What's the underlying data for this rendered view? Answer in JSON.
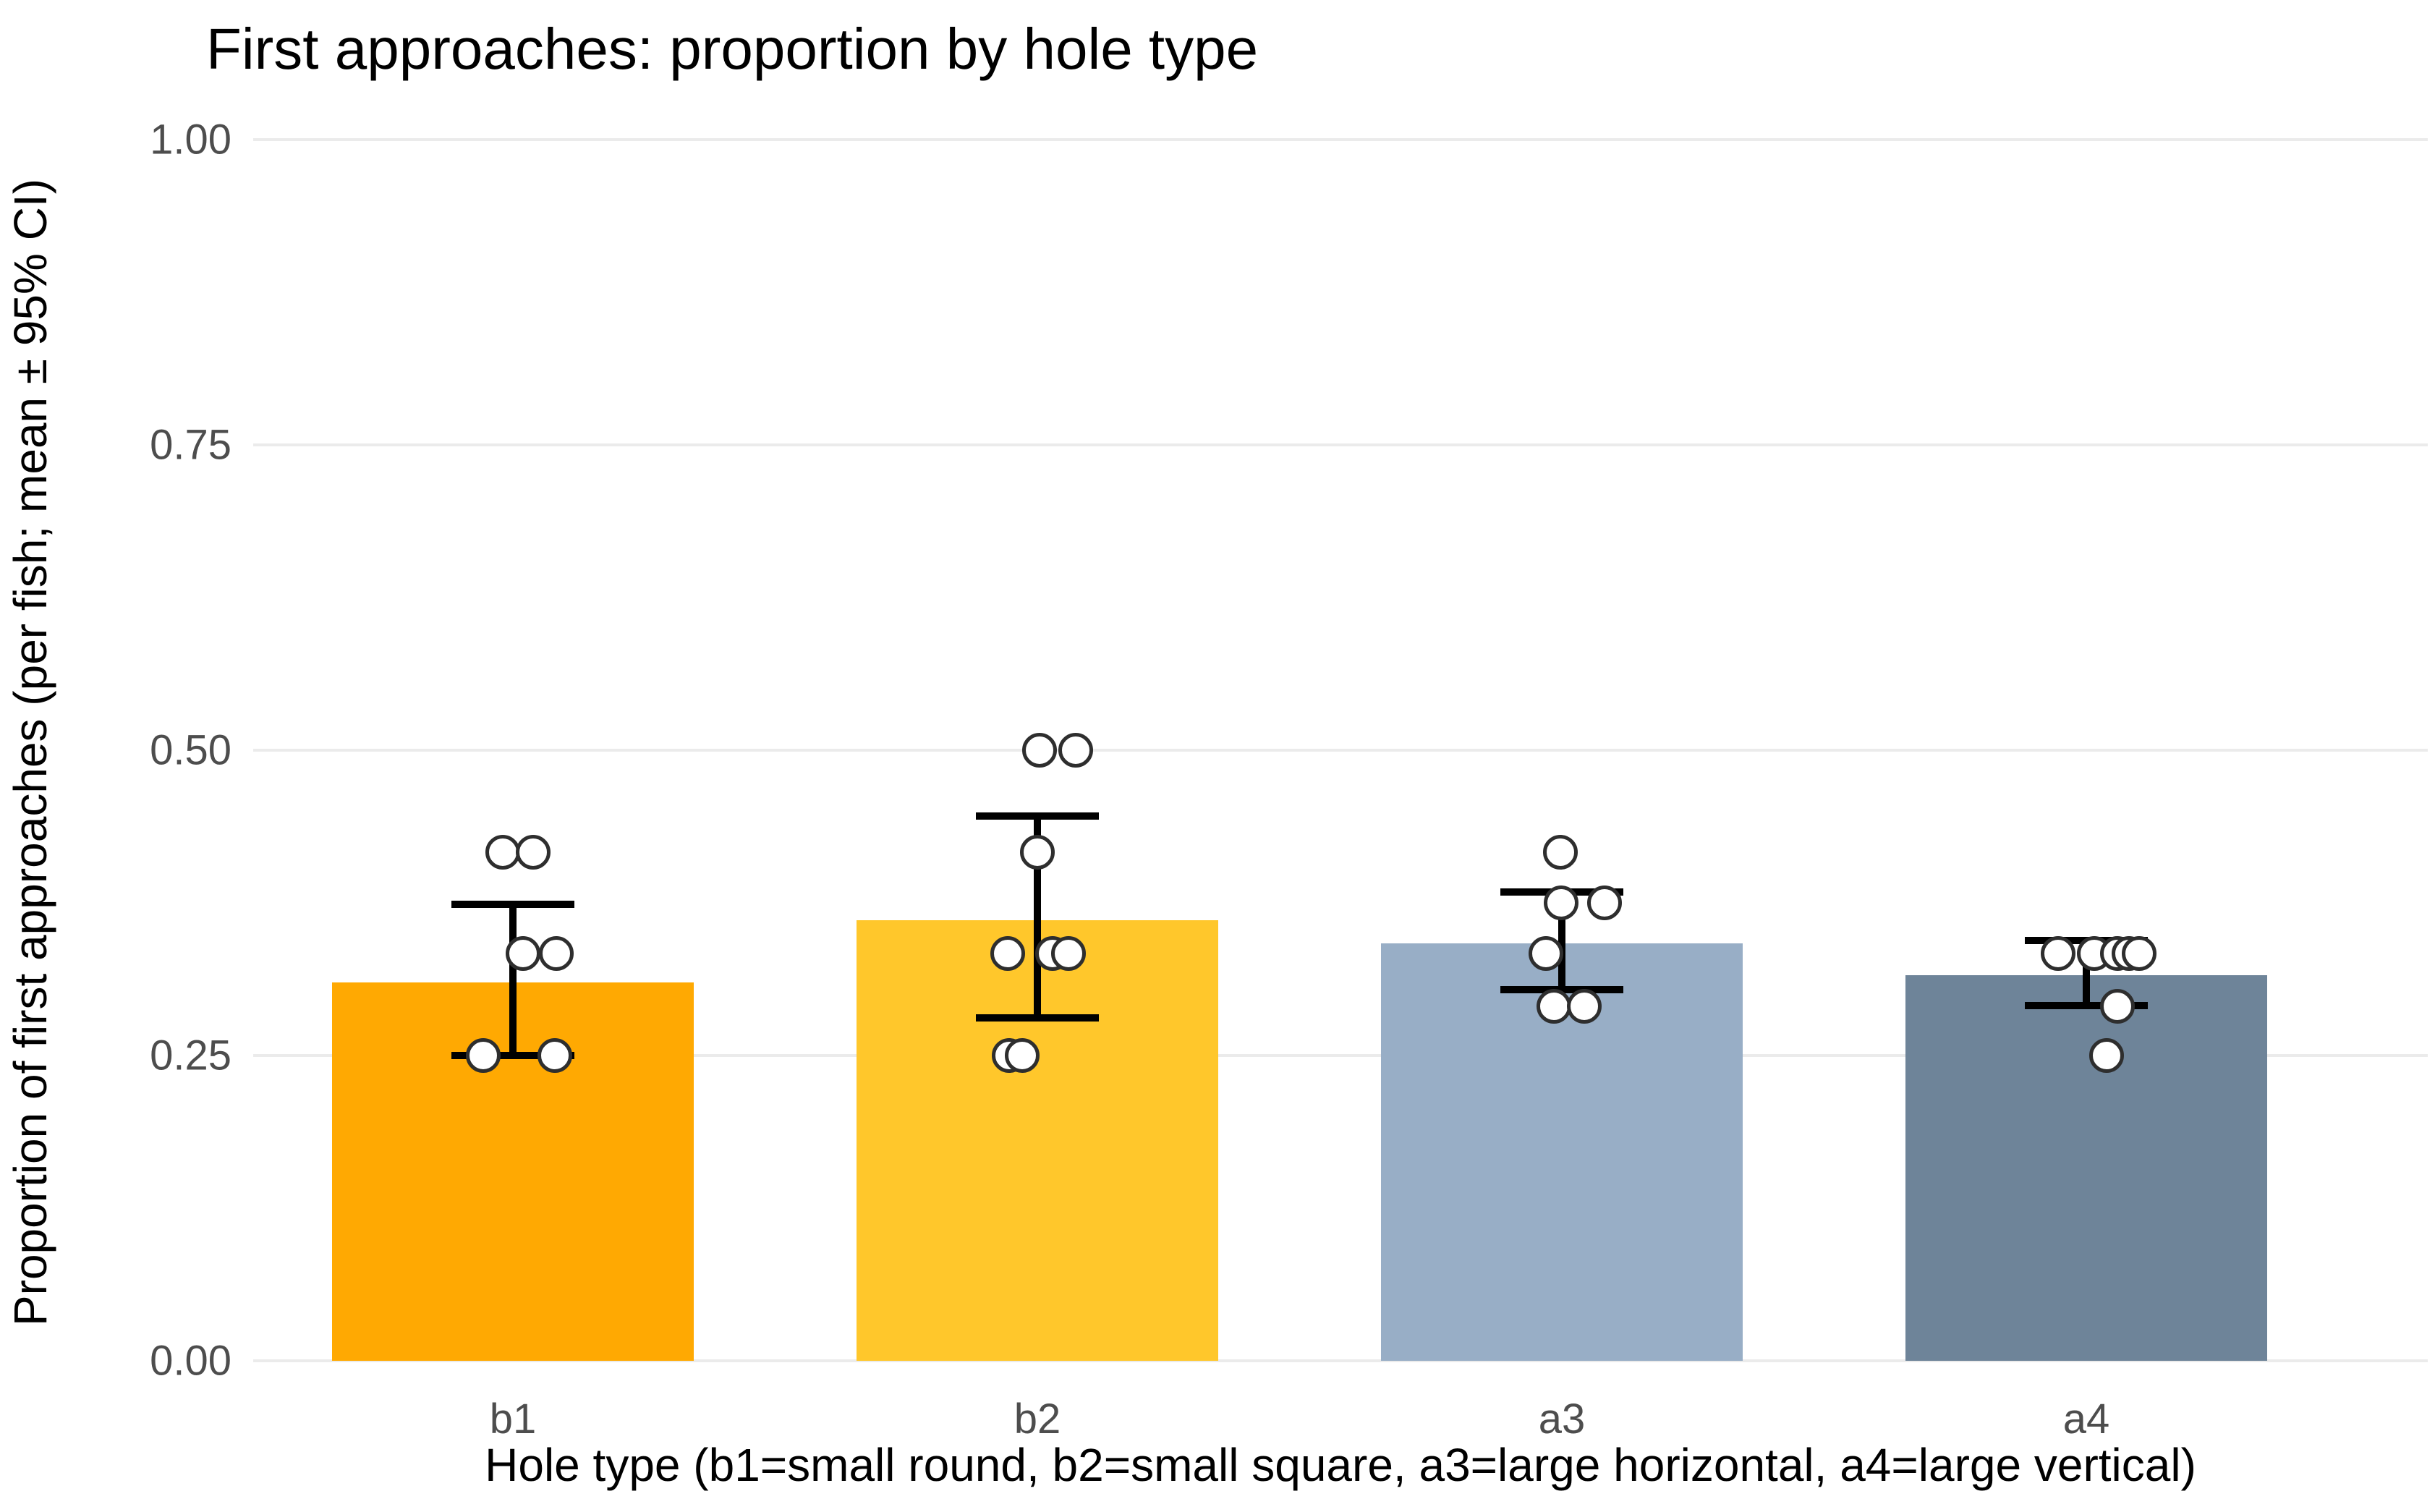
{
  "page": {
    "background": "#ffffff"
  },
  "chart_data": {
    "type": "bar",
    "title": "First approaches: proportion by hole type",
    "xlabel": "Hole type (b1=small round, b2=small square, a3=large horizontal, a4=large vertical)",
    "ylabel": "Proportion of first approaches (per fish; mean ± 95% CI)",
    "ylim": [
      0,
      1
    ],
    "yticks": [
      0,
      0.25,
      0.5,
      0.75,
      1
    ],
    "ytick_labels": [
      "0.00",
      "0.25",
      "0.50",
      "0.75",
      "1.00"
    ],
    "grid": "horizontal-major-only",
    "legend": "none",
    "error_bars": "mean ± 95% CI",
    "categories": [
      "b1",
      "b2",
      "a3",
      "a4"
    ],
    "means": [
      0.31,
      0.361,
      0.342,
      0.316
    ],
    "ci_low": [
      0.25,
      0.281,
      0.304,
      0.291
    ],
    "ci_high": [
      0.374,
      0.446,
      0.384,
      0.344
    ],
    "bar_colors": [
      "#FFA902",
      "#FFC72B",
      "#98AEC6",
      "#6E8499"
    ],
    "grid_color": "#EBEBEB",
    "tick_label_color": "#4D4D4D",
    "text_color": "#000000",
    "point_style": {
      "fill": "#FFFFFF",
      "stroke": "#2E2E2E"
    },
    "points": [
      {
        "category": "b1",
        "values": [
          {
            "v": 0.4167,
            "dx": -14
          },
          {
            "v": 0.4167,
            "dx": 28
          },
          {
            "v": 0.3333,
            "dx": 14
          },
          {
            "v": 0.3333,
            "dx": 60
          },
          {
            "v": 0.25,
            "dx": -41
          },
          {
            "v": 0.25,
            "dx": 58
          }
        ]
      },
      {
        "category": "b2",
        "values": [
          {
            "v": 0.5,
            "dx": 3
          },
          {
            "v": 0.5,
            "dx": 53
          },
          {
            "v": 0.4167,
            "dx": 0
          },
          {
            "v": 0.3333,
            "dx": -41
          },
          {
            "v": 0.3333,
            "dx": 21
          },
          {
            "v": 0.3333,
            "dx": 43
          },
          {
            "v": 0.25,
            "dx": -39
          },
          {
            "v": 0.25,
            "dx": -21
          }
        ]
      },
      {
        "category": "a3",
        "values": [
          {
            "v": 0.4167,
            "dx": -2
          },
          {
            "v": 0.375,
            "dx": -1
          },
          {
            "v": 0.375,
            "dx": 59
          },
          {
            "v": 0.3333,
            "dx": -22
          },
          {
            "v": 0.29,
            "dx": -11
          },
          {
            "v": 0.29,
            "dx": 31
          }
        ]
      },
      {
        "category": "a4",
        "values": [
          {
            "v": 0.3333,
            "dx": -39
          },
          {
            "v": 0.3333,
            "dx": 11
          },
          {
            "v": 0.3333,
            "dx": 43
          },
          {
            "v": 0.3333,
            "dx": 59
          },
          {
            "v": 0.3333,
            "dx": 73
          },
          {
            "v": 0.29,
            "dx": 43
          },
          {
            "v": 0.25,
            "dx": 28
          }
        ]
      }
    ]
  }
}
